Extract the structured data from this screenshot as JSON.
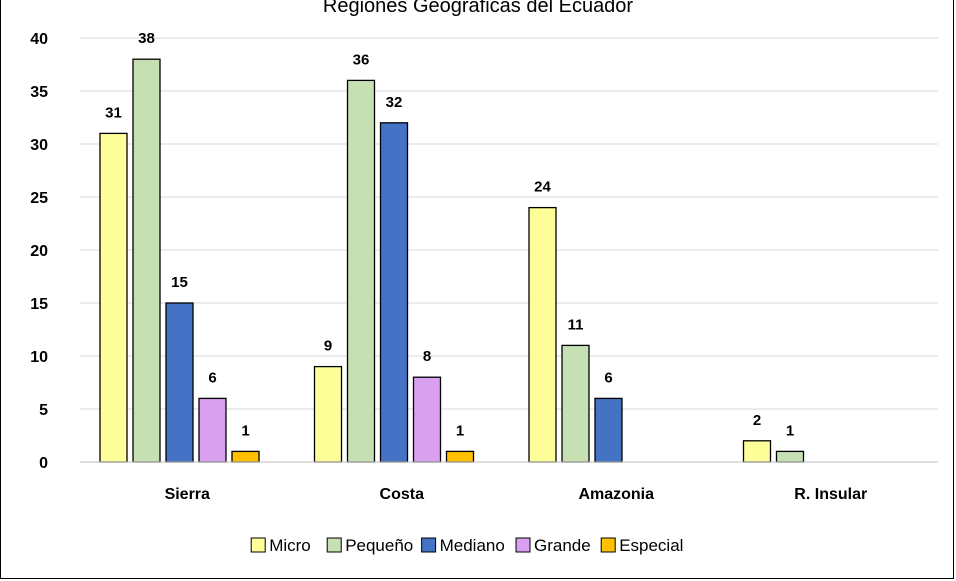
{
  "chart_data": {
    "type": "bar",
    "title": "Regiones Geográficas del Ecuador",
    "categories": [
      "Sierra",
      "Costa",
      "Amazonia",
      "R. Insular"
    ],
    "series": [
      {
        "name": "Micro",
        "color": "#FFFF99",
        "values": [
          31,
          9,
          24,
          2
        ]
      },
      {
        "name": "Pequeño",
        "color": "#C6E0B4",
        "values": [
          38,
          36,
          11,
          1
        ]
      },
      {
        "name": "Mediano",
        "color": "#4472C4",
        "values": [
          15,
          32,
          6,
          null
        ]
      },
      {
        "name": "Grande",
        "color": "#D9A0F0",
        "values": [
          6,
          8,
          null,
          null
        ]
      },
      {
        "name": "Especial",
        "color": "#FFC000",
        "values": [
          1,
          1,
          null,
          null
        ]
      }
    ],
    "yticks": [
      "0",
      "5",
      "10",
      "15",
      "20",
      "25",
      "30",
      "35",
      "40"
    ],
    "ylim": [
      0,
      40
    ],
    "grid": true,
    "legend_position": "bottom",
    "data_labels": true
  }
}
